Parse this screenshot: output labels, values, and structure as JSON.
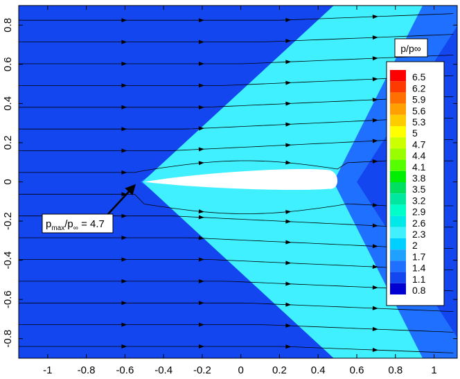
{
  "chart_data": {
    "type": "contour",
    "title": "",
    "xlabel": "",
    "ylabel": "",
    "xlim": [
      -1.15,
      1.12
    ],
    "ylim": [
      -0.9,
      0.9
    ],
    "x_ticks": [
      "-1",
      "-0.8",
      "-0.6",
      "-0.4",
      "-0.2",
      "0",
      "0.2",
      "0.4",
      "0.6",
      "0.8",
      "1"
    ],
    "y_ticks": [
      "-0.8",
      "-0.6",
      "-0.4",
      "-0.2",
      "0",
      "0.2",
      "0.4",
      "0.6",
      "0.8"
    ],
    "legend": {
      "title": "p/p∞",
      "placement": "right",
      "levels": [
        "6.5",
        "6.2",
        "5.9",
        "5.6",
        "5.3",
        "5",
        "4.7",
        "4.4",
        "4.1",
        "3.8",
        "3.5",
        "3.2",
        "2.9",
        "2.6",
        "2.3",
        "2",
        "1.7",
        "1.4",
        "1.1",
        "0.8"
      ],
      "colors": [
        "#ff0000",
        "#ff3a00",
        "#ff7000",
        "#ffa000",
        "#ffcc00",
        "#ffff00",
        "#ccff00",
        "#99ff00",
        "#55ff00",
        "#00ee00",
        "#00e060",
        "#00e8a0",
        "#00ffc8",
        "#00e8e8",
        "#40f0ff",
        "#00d0ff",
        "#20a0ff",
        "#2070ff",
        "#1446f0",
        "#0000d0"
      ]
    },
    "background_color": "#1446f0",
    "bands": [
      {
        "label": "1.4",
        "color": "#2070ff",
        "vertex_x": -0.52,
        "upper_edge_x": 0.25,
        "lower_edge_x": 0.25
      },
      {
        "label": "1.7",
        "color": "#20a0ff",
        "vertex_x": -0.51,
        "upper_edge_x": 0.14,
        "lower_edge_x": 0.14
      },
      {
        "label": "2",
        "color": "#00d0ff",
        "vertex_x": -0.51,
        "upper_edge_x": 0.05,
        "lower_edge_x": 0.05
      },
      {
        "label": "2.3",
        "color": "#40f0ff",
        "vertex_x": -0.51,
        "upper_edge_x": -0.05,
        "lower_edge_x": -0.05
      }
    ],
    "airfoil": {
      "leading_edge_x": -0.5,
      "trailing_edge_x": 0.5
    },
    "annotation": {
      "base": "p",
      "sub": "max",
      "over": "/p",
      "sub2": "∞",
      "equals": " = 4.7",
      "target_x": -0.5,
      "target_y": 0.0
    }
  }
}
